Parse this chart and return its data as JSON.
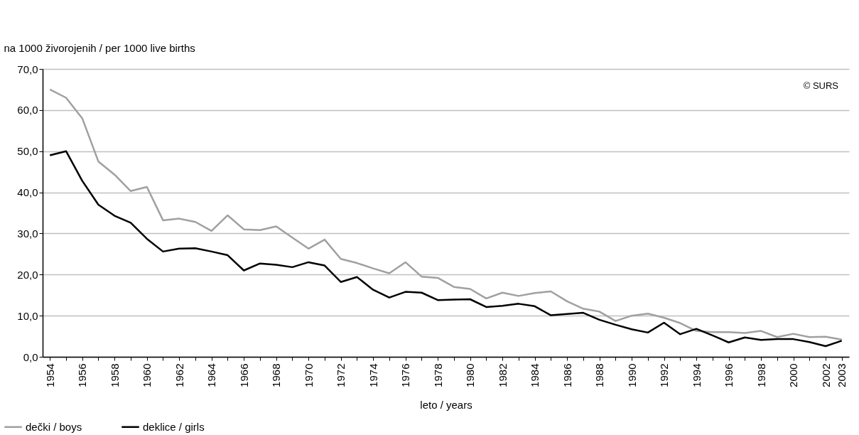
{
  "chart_data": {
    "type": "line",
    "ylabel": "na 1000 živorojenih / per 1000 live births",
    "xlabel": "leto / years",
    "annotations": [
      "© SURS"
    ],
    "categories": [
      "1954",
      null,
      "1956",
      null,
      "1958",
      null,
      "1960",
      null,
      "1962",
      null,
      "1964",
      null,
      "1966",
      null,
      "1968",
      null,
      "1970",
      null,
      "1972",
      null,
      "1974",
      null,
      "1976",
      null,
      "1978",
      null,
      "1980",
      null,
      "1982",
      null,
      "1984",
      null,
      "1986",
      null,
      "1988",
      null,
      "1990",
      null,
      "1992",
      null,
      "1994",
      null,
      "1996",
      null,
      "1998",
      null,
      "2000",
      null,
      "2002",
      "2003"
    ],
    "series": [
      {
        "name": "dečki / boys",
        "color": "#a0a0a0",
        "values": [
          65.0,
          63.0,
          58.0,
          47.5,
          44.3,
          40.3,
          41.3,
          33.2,
          33.6,
          32.8,
          30.6,
          34.4,
          31.0,
          30.8,
          31.7,
          29.0,
          26.3,
          28.5,
          23.8,
          22.8,
          21.5,
          20.3,
          23.0,
          19.5,
          19.2,
          17.0,
          16.5,
          14.2,
          15.6,
          14.8,
          15.5,
          15.9,
          13.5,
          11.7,
          11.0,
          8.7,
          10.0,
          10.5,
          9.5,
          8.2,
          6.3,
          6.0,
          6.0,
          5.8,
          6.3,
          4.8,
          5.6,
          4.8,
          4.9,
          4.2
        ]
      },
      {
        "name": "deklice / girls",
        "color": "#000000",
        "values": [
          49.0,
          50.0,
          42.8,
          37.0,
          34.3,
          32.6,
          28.7,
          25.6,
          26.3,
          26.4,
          25.6,
          24.7,
          21.0,
          22.7,
          22.4,
          21.8,
          23.0,
          22.2,
          18.2,
          19.4,
          16.3,
          14.4,
          15.8,
          15.6,
          13.8,
          13.9,
          14.0,
          12.1,
          12.4,
          12.9,
          12.3,
          10.1,
          10.4,
          10.7,
          9.0,
          7.8,
          6.7,
          5.9,
          8.3,
          5.5,
          6.8,
          5.2,
          3.5,
          4.7,
          4.1,
          4.3,
          4.3,
          3.6,
          2.6,
          3.9
        ]
      }
    ],
    "ylim": [
      0,
      70
    ],
    "yticks": [
      {
        "value": 0,
        "label": "0,0"
      },
      {
        "value": 10,
        "label": "10,0"
      },
      {
        "value": 20,
        "label": "20,0"
      },
      {
        "value": 30,
        "label": "30,0"
      },
      {
        "value": 40,
        "label": "40,0"
      },
      {
        "value": 50,
        "label": "50,0"
      },
      {
        "value": 60,
        "label": "60,0"
      },
      {
        "value": 70,
        "label": "70,0"
      }
    ],
    "grid": "y",
    "legend": "bottom left",
    "marker": "none",
    "line_style": "solid"
  }
}
